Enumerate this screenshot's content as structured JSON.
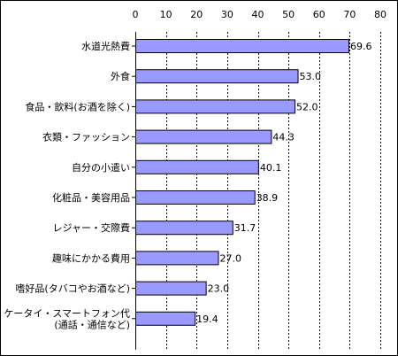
{
  "chart_data": {
    "type": "bar",
    "orientation": "horizontal",
    "categories": [
      "水道光熱費",
      "外食",
      "食品・飲料(お酒を除く)",
      "衣類・ファッション",
      "自分の小遣い",
      "化粧品・美容用品",
      "レジャー・交際費",
      "趣味にかかる費用",
      "嗜好品(タバコやお酒など)",
      "ケータイ・スマートフォン代(通話・通信など)"
    ],
    "category_lines": [
      [
        "水道光熱費"
      ],
      [
        "外食"
      ],
      [
        "食品・飲料(お酒を除く)"
      ],
      [
        "衣類・ファッション"
      ],
      [
        "自分の小遣い"
      ],
      [
        "化粧品・美容用品"
      ],
      [
        "レジャー・交際費"
      ],
      [
        "趣味にかかる費用"
      ],
      [
        "嗜好品(タバコやお酒など)"
      ],
      [
        "ケータイ・スマートフォン代",
        "(通話・通信など)"
      ]
    ],
    "values": [
      69.6,
      53.0,
      52.0,
      44.3,
      40.1,
      38.9,
      31.7,
      27.0,
      23.0,
      19.4
    ],
    "value_labels": [
      "69.6",
      "53.0",
      "52.0",
      "44.3",
      "40.1",
      "38.9",
      "31.7",
      "27.0",
      "23.0",
      "19.4"
    ],
    "xlim": [
      0,
      80
    ],
    "xticks": [
      0,
      10,
      20,
      30,
      40,
      50,
      60,
      70,
      80
    ],
    "x_axis_position": "top",
    "grid": true,
    "grid_style": "dashed",
    "legend": false,
    "bar_color": "#9999FF",
    "title": "",
    "xlabel": "",
    "ylabel": ""
  }
}
